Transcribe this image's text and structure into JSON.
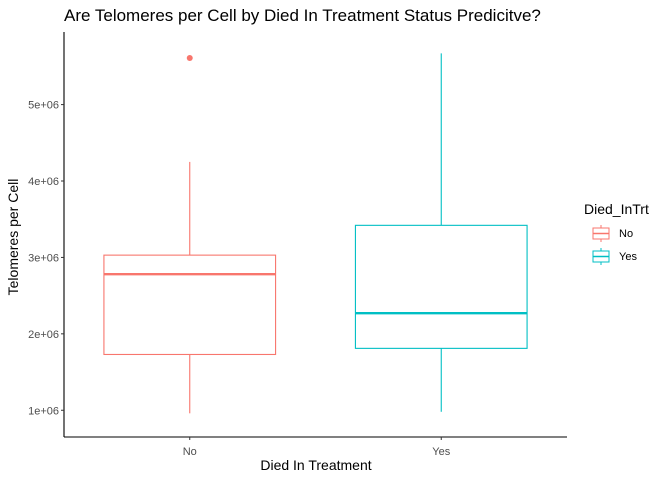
{
  "chart_data": {
    "type": "boxplot",
    "title": "Are Telomeres per Cell by Died In Treatment Status Predicitve?",
    "xlabel": "Died In Treatment",
    "ylabel": "Telomeres per Cell",
    "categories": [
      "No",
      "Yes"
    ],
    "ylim": [
      650000,
      5950000
    ],
    "yticks": [
      1000000,
      2000000,
      3000000,
      4000000,
      5000000
    ],
    "ytick_labels": [
      "1e+06",
      "2e+06",
      "3e+06",
      "4e+06",
      "5e+06"
    ],
    "legend": {
      "title": "Died_InTrt",
      "position": "right",
      "entries": [
        "No",
        "Yes"
      ]
    },
    "grid": false,
    "series": [
      {
        "name": "No",
        "color": "#F8766D",
        "min": 960000,
        "q1": 1730000,
        "median": 2780000,
        "q3": 3030000,
        "max": 4250000,
        "outliers": [
          5610000
        ]
      },
      {
        "name": "Yes",
        "color": "#00BFC4",
        "min": 980000,
        "q1": 1810000,
        "median": 2270000,
        "q3": 3420000,
        "max": 5670000,
        "outliers": []
      }
    ]
  }
}
